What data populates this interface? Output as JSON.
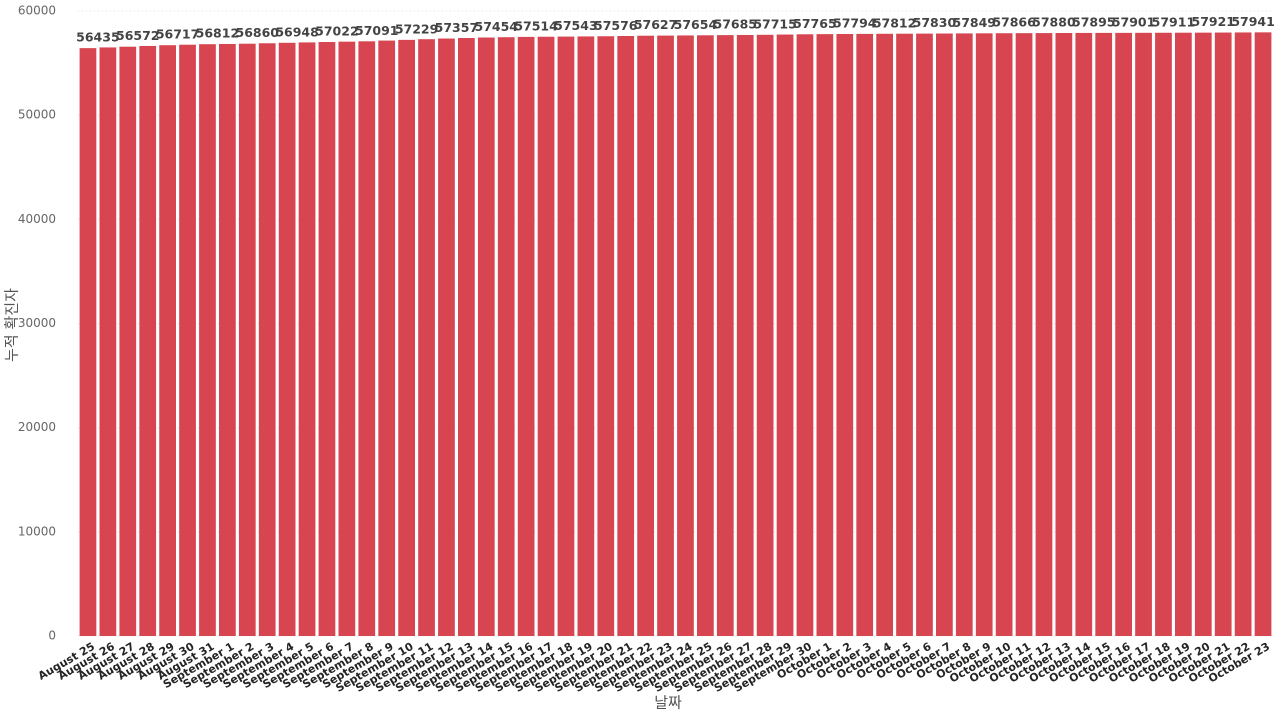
{
  "chart_data": {
    "type": "bar",
    "x_label": "날짜",
    "y_label": "누적 확진자",
    "categories": [
      "August 25",
      "August 26",
      "August 27",
      "August 28",
      "August 29",
      "August 30",
      "August 31",
      "September 1",
      "September 2",
      "September 3",
      "September 4",
      "September 5",
      "September 6",
      "September 7",
      "September 8",
      "September 9",
      "September 10",
      "September 11",
      "September 12",
      "September 13",
      "September 14",
      "September 15",
      "September 16",
      "September 17",
      "September 18",
      "September 19",
      "September 20",
      "September 21",
      "September 22",
      "September 23",
      "September 24",
      "September 25",
      "September 26",
      "September 27",
      "September 28",
      "September 29",
      "September 30",
      "October 1",
      "October 2",
      "October 3",
      "October 4",
      "October 5",
      "October 6",
      "October 7",
      "October 8",
      "October 9",
      "October 10",
      "October 11",
      "October 12",
      "October 13",
      "October 14",
      "October 15",
      "October 16",
      "October 17",
      "October 18",
      "October 19",
      "October 20",
      "October 21",
      "October 22",
      "October 23"
    ],
    "values": [
      56435,
      56503,
      56572,
      56644,
      56717,
      56764,
      56812,
      56836,
      56860,
      56904,
      56948,
      56985,
      57022,
      57056,
      57091,
      57160,
      57229,
      57293,
      57357,
      57405,
      57454,
      57484,
      57514,
      57528,
      57543,
      57559,
      57576,
      57601,
      57627,
      57640,
      57654,
      57669,
      57685,
      57700,
      57715,
      57740,
      57765,
      57779,
      57794,
      57803,
      57812,
      57821,
      57830,
      57839,
      57849,
      57857,
      57866,
      57873,
      57880,
      57887,
      57895,
      57898,
      57901,
      57906,
      57911,
      57916,
      57921,
      57931,
      57941,
      57950
    ],
    "color": "#d64550",
    "ylim": [
      0,
      60000
    ],
    "yticks": [
      0,
      10000,
      20000,
      30000,
      40000,
      50000,
      60000
    ],
    "grid": true
  }
}
